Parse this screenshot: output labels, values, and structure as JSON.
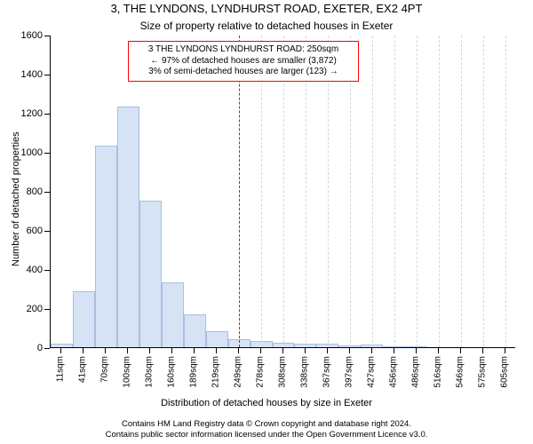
{
  "title": "3, THE LYNDONS, LYNDHURST ROAD, EXETER, EX2 4PT",
  "subtitle": "Size of property relative to detached houses in Exeter",
  "yaxis_title": "Number of detached properties",
  "xaxis_title": "Distribution of detached houses by size in Exeter",
  "footer_line1": "Contains HM Land Registry data © Crown copyright and database right 2024.",
  "footer_line2": "Contains public sector information licensed under the Open Government Licence v3.0.",
  "legend": {
    "line1": "3 THE LYNDONS LYNDHURST ROAD: 250sqm",
    "line2": "← 97% of detached houses are smaller (3,872)",
    "line3": "3% of semi-detached houses are larger (123) →"
  },
  "chart": {
    "type": "histogram",
    "background_color": "#ffffff",
    "bar_fill": "#d6e3f5",
    "bar_border": "#a7bfe0",
    "bar_width_ratio": 1.0,
    "marker_line": {
      "x_category": "249sqm",
      "color": "#ff0000",
      "dash": "3,3",
      "width": 1
    },
    "grid": {
      "right_of_marker": true,
      "color": "#cfd8e6",
      "dash": "1,3",
      "width": 1
    },
    "ylim": [
      0,
      1600
    ],
    "ytick_step": 200,
    "yticks": [
      0,
      200,
      400,
      600,
      800,
      1000,
      1200,
      1400,
      1600
    ],
    "x_categories": [
      "11sqm",
      "41sqm",
      "70sqm",
      "100sqm",
      "130sqm",
      "160sqm",
      "189sqm",
      "219sqm",
      "249sqm",
      "278sqm",
      "308sqm",
      "338sqm",
      "367sqm",
      "397sqm",
      "427sqm",
      "456sqm",
      "486sqm",
      "516sqm",
      "546sqm",
      "575sqm",
      "605sqm"
    ],
    "values": [
      20,
      285,
      1030,
      1230,
      750,
      330,
      170,
      80,
      40,
      30,
      25,
      20,
      18,
      8,
      15,
      6,
      4,
      0,
      0,
      0,
      0
    ],
    "title_fontsize": 13,
    "subtitle_fontsize": 12,
    "axis_label_fontsize": 11,
    "tick_fontsize": 11,
    "legend_fontsize": 10,
    "legend_border": "#ff0000",
    "legend_bg": "#ffffff",
    "footer_fontsize": 9.5,
    "text_color": "#000000"
  }
}
